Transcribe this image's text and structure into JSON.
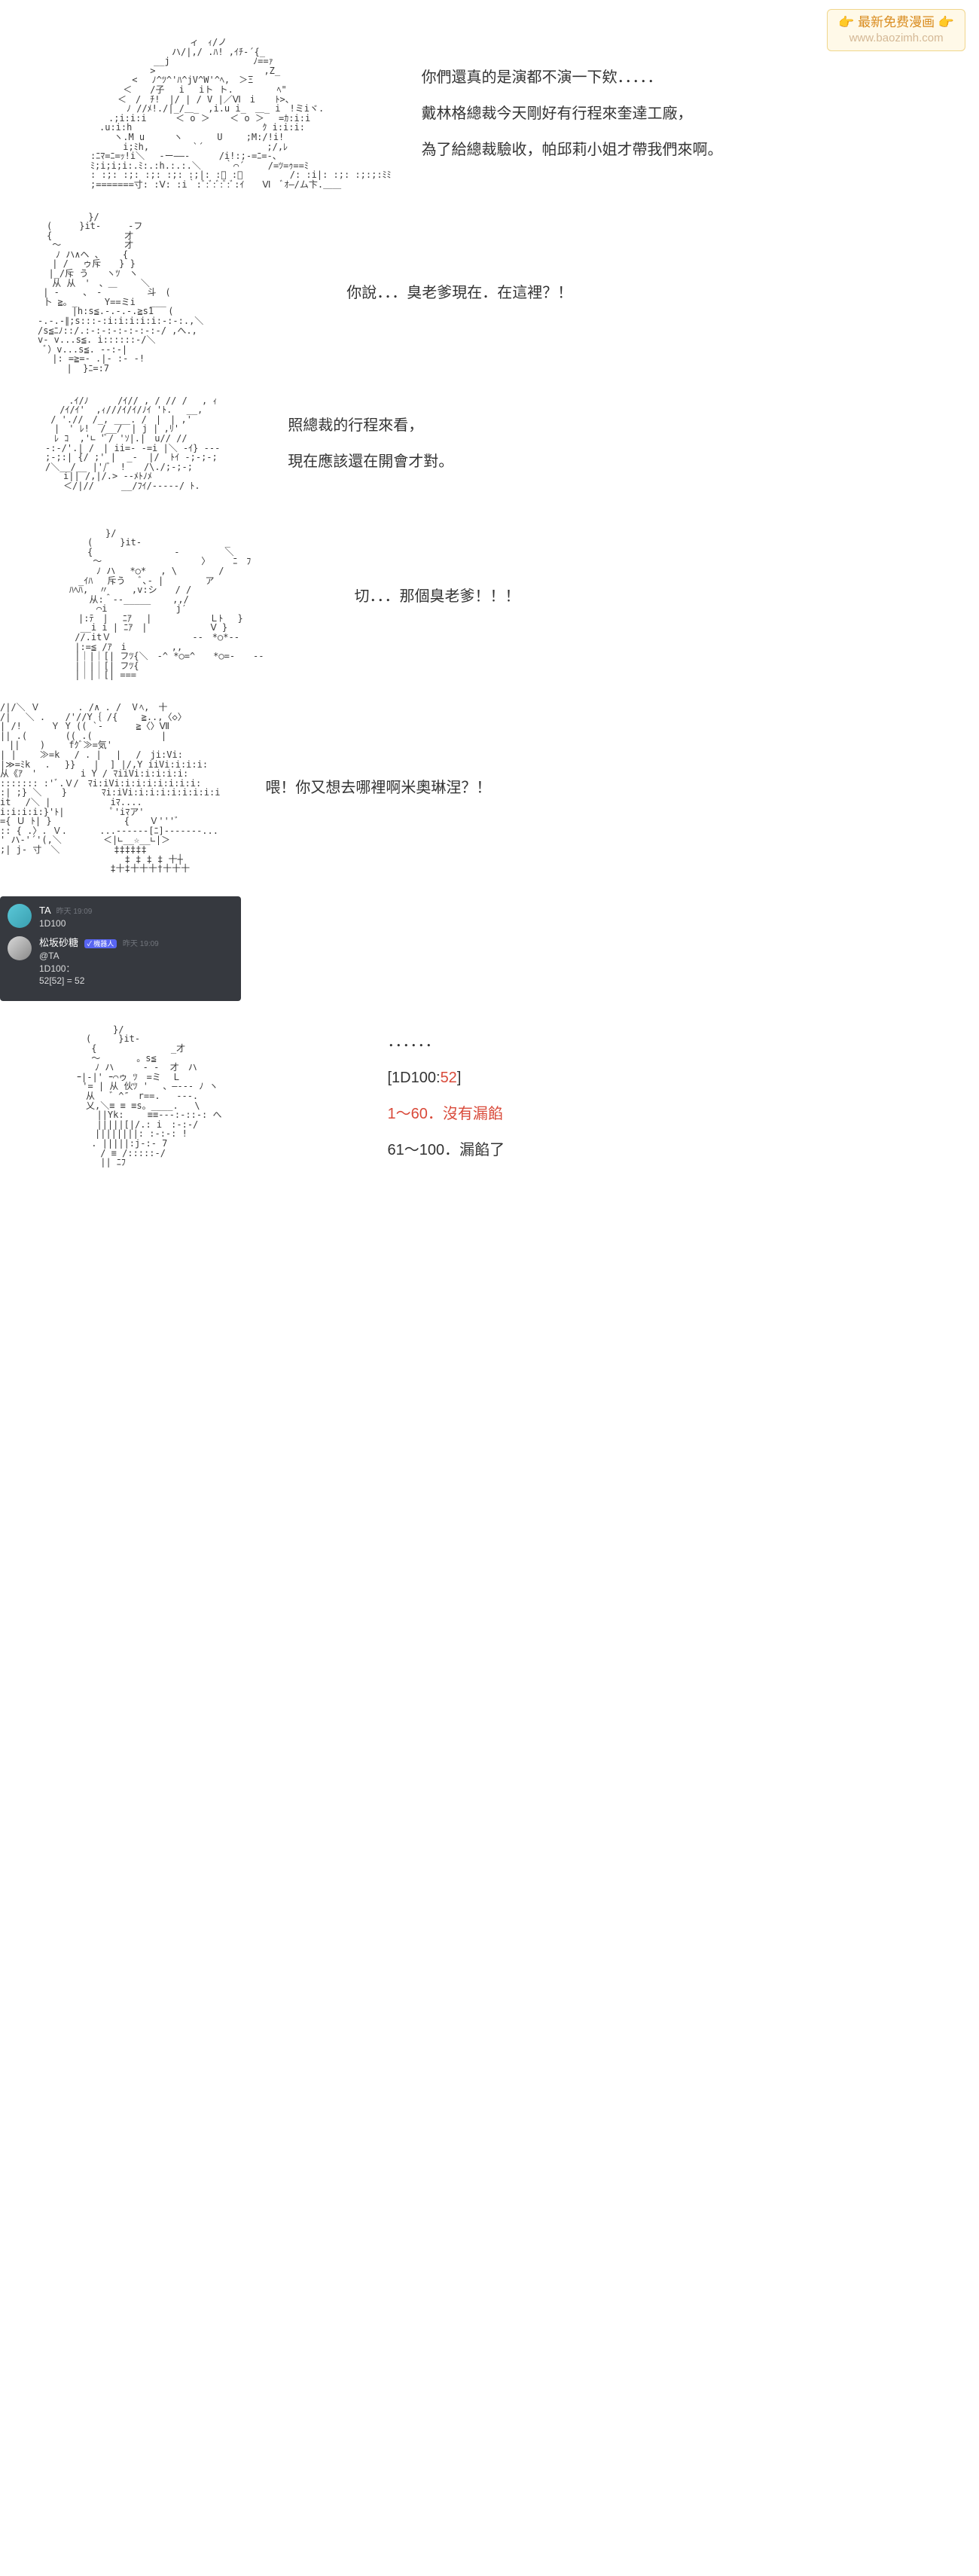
{
  "watermark": {
    "line1_prefix": "👉 ",
    "line1_text": "最新免费漫画",
    "line1_suffix": " 👉",
    "line2": "www.baozimh.com",
    "bg_color": "#fff9e8",
    "border_color": "#f0d68c",
    "text_color": "#d98c1f"
  },
  "panels": {
    "p1": {
      "ascii": "　　　　　　　　　　　ィ　ｨ/ノ\n　　　　　　　　　ハ/|,/ .ﾊ! ,ｲﾁ-´{_\n　　　　　　　__j　　　　　　　 　 ﾉ==ｧ\n　　　　　　 >　　　　　　　　　　　　,Z_\n　　　　 < 　ﾉ^ﾂ^'ﾊ^jV^W'^ﾍ,　＞Ξ\n　　　 ＜　　/子　 i　 iト ト.　 　 　 ﾍ\"\n　　　＜　/　ﾁ!　|/ | / V |／Ⅵ　i 　 ﾄ>、\n　　　　ﾉ //ﾒ!./|_/＿_　,i.u i_　＿_ i　!ミiヾ.\n　　.;i:i:i　 　 ＜ o ＞ 　 ＜ o ＞ 　=ｶ:i:i\n　.u:i:h　 　 　 　 　 　 　 　 　 ｸ i:i:i:\n　　 ヽ.M u　 　 ヽ 　 　 U　　 ;M:/!i!\n　　　 i;ﾐh,　 　 　 `´ 　 　 　 　 ;/,ﾚ\n:ﾆﾏ=ﾆ=ｯ!i＼　 -ー――-　 　 /i!:;-=ﾆ=-、\nﾐ;i;i;i:.ﾐ:.:h.:.:.＼　 　｀⌒´　 　/=ﾂ=ｩ==ﾐ\n: :;: :;: :;: :;: :;|: :ﾞ :＼　 　 　　/: :i|: :;: :;:;:ﾐﾐ\n;=======寸: :Ⅴ: :i｀:ﾞ:ﾞ:ﾞ:ﾞ:ﾞ:ｲ　　Ⅵ　ﾞｵ―/ム卞.＿＿",
      "lines": [
        "你們還真的是演都不演一下欸．．．．．",
        "戴林格總裁今天剛好有行程來奎達工廠，",
        "為了給總裁驗收，帕邱莉小姐才帶我們來啊。"
      ]
    },
    "p2": {
      "ascii": "　　　　　 }/\n　(　　　}it-　　　-フ\n　{　　　　　　　　才\n　 ～　　　　　　　才\n　　ﾉ ハ∧ヘ 、　　 {\n　 | /　 ゥ斥　　} }\n  |_/斥 う　　ヽﾂ　ヽ\n　 从 从　'　、＿　　 ＼\n | -　　 、　-　　　　　斗　(\n 卜 ≧。_　　　Y==ミi　 ___\n 　 　 |h:s≦.-.-.-.≧s1　 (\n-.-.-∥;s:::-:i:i:i:i:i:-:-:.,＼\n/s≦ﾆﾉ::/.:-:-:-:-:-:-:-/ ,へ.,\nv- v...s≦. i::::::-/＼\n ﾞ）v...s≦. --:-|\n　 |: =≧=- .|- :- -!\n　 　 |  }ﾆ=:7",
      "lines": [
        "你說．．．臭老爹現在．在這裡？！"
      ]
    },
    "p3": {
      "ascii": "　　 .ｲ/ﾉ　 　 /ｲ// , / // /　 , ｨ\n　 /ｲ/ｲ'  ,ｨ///ｲ/ｲ/ﾉｲ 'ﾄ.　 __,\n / './/　/_, ___. /　|　| ,'\n　|　' ﾚ!  /__/　| j | ,ﾘ'\n　ﾚ ｺ  ,'∟ 'ﾞ/ 'ｿ|.|　u// //\n-:-/'.| /　| ii=- -=i |＼ -ｲ} ---\n;-;:| {/ ;' |  _-  |/  ﾄｲ -;-;-;\n/＼__/__ |'/ﾞ　!　　/\\./;-;-;\n　　i|| /,|/.> --ﾒﾄﾉﾒ\n　　＜/|//　　　__/ﾌｲ/-----/ ﾄ.",
      "lines": [
        "照總裁的行程來看，",
        "現在應該還在開會才對。"
      ]
    },
    "p4": {
      "ascii": "　　　　　}/\n　　　(　　　}it-　　　　 　　 　　_\n　　　{　　　　　　　　　-　　　　　＼\n　　　 ～　　　　　　　　　　　〉　　　ﾆ　ﾌ\n　　　　ﾉ ハ　 *○*　 , \\　　　　 /\n　　_ｲﾊ　 斥う   ﾞ､- |　　　　 ア\n　ﾊﾍﾊ,  〃　　 ,v:シ　　/ /\n　 　 从:＾--_____    ,,/\n　　　　⌒i　　　　　　　 j′\n　　|:ﾃ　|　 ﾆｱ　 |　 　 　 　 Ｌﾄ　 }\n 　 __i i | ﾆｱ　|　　　　　　　Ⅴ }\n　 //.itＶ　　　　　　　　　--　*○*--\n　 |:=≦ /ｱ　i　　　　　,,\n　 |｜|｜[| フﾂ{＼　-^ *○=^　　*○=-　　--\n　 |｜|｜[| フﾂ{\n　 |｜|｜[| ===",
      "lines": [
        "切．．．那個臭老爹！！！"
      ]
    },
    "p5": {
      "ascii": "/|/＼ Ｖ　　 　 . /∧ . /　Ⅴﾍ,　十\n/| 　＼ . 　 /'//Y｛ /{　　 ≧..,〈◇〉\n| /!　 　 Ｙ Y (( `-　　 　≧〈〉Ⅶ\n|| .(　　 　 (( .(　　　　　　　 |\n　|| 　 ) 　　fｸﾞ≫=気'\n| |　　 ≫=k 　/ . | 　|　 /　ji:Vi:\n|≫=ﾐk　 . 　}}　　|  ] |/,Y iiVi:i:i:i:\n从《ｱ　' 　　　  i Y / ﾏiiVi:i:i:i:i:\n::::::: :'ﾞ.Ｖ/　ﾏi:iVi:i:i:i:i:i:i:i:\n:| ;} ＼ 　 } 　 　 ﾏi:iVi:i:i:i:i:i:i:i:i\nit　 /＼ |　　　　　　 iﾏ....\ni:i:i:i:}'ﾄ| 　 　 　 ﾟ'iﾏア'\n={ Ｕ ﾄ| }　 　 　 　 　 { 　 Ｖ'''ﾞ\n:: { .〉. Ｖ.　　 　...------[ﾆ]-------...\n' ハ-'´'(,＼　　　　 ＜|∟__☆__∟|＞\n;| j- 寸　＼　　　　　　‡‡‡‡‡‡\n　　 　　　 　　　　　　　 ‡ ‡ ‡ ‡ 十┼\n　　 　　　　　　　　　 ‡十‡十十十†十十十",
      "lines": [
        "喂！你又想去哪裡啊米奧琳涅？！"
      ]
    },
    "p7": {
      "ascii": "　　　　　}/\n　　(　　　}it-\n　　 {　　　　 　 　　_才\n　　 ～　　　　。s≦\n　　　ﾉ ハ　　  - -  才　ハ\n　ｰ|-|' ｰ⌒ゥ ﾂ　=ミ  Ｌ\n　 '= | 从 伙ﾂ '　 、―--- ﾉ ヽ\n　　从　 ゛^″　r==.   ---.\n　　乂,＼≡ ≡ ≡s。____.   \\ \n　 　 ||Yk:　　 ≡≡---:-::-: へ\n　 　 |||||[|/.: i　:-:-/\n　　　||||||||: :-:-: !\n　　 . |||||:j-:- 7\n　　　 / ≡ /:::::-/\n　　　 || ﾆﾌ",
      "dots": "．．．．．．",
      "dice_label": "[1D100:",
      "dice_value": "52",
      "dice_suffix": "]",
      "range1": "1～60．沒有漏餡",
      "range2": "61～100．漏餡了"
    }
  },
  "chat": {
    "bg_color": "#36393f",
    "msg1": {
      "user": "TA",
      "timestamp": "昨天 19:09",
      "content": "1D100"
    },
    "msg2": {
      "user": "松坂砂糖",
      "badge": "✓ 機器人",
      "timestamp": "昨天 19:09",
      "reply_to": "@TA",
      "line1": "1D100：",
      "line2": "52[52] = 52"
    }
  },
  "colors": {
    "text": "#333333",
    "ascii": "#3a3a3a",
    "red": "#d94a3a",
    "chat_bg": "#36393f",
    "chat_text": "#dcddde",
    "chat_ts": "#72767d",
    "badge_bg": "#5865f2"
  }
}
